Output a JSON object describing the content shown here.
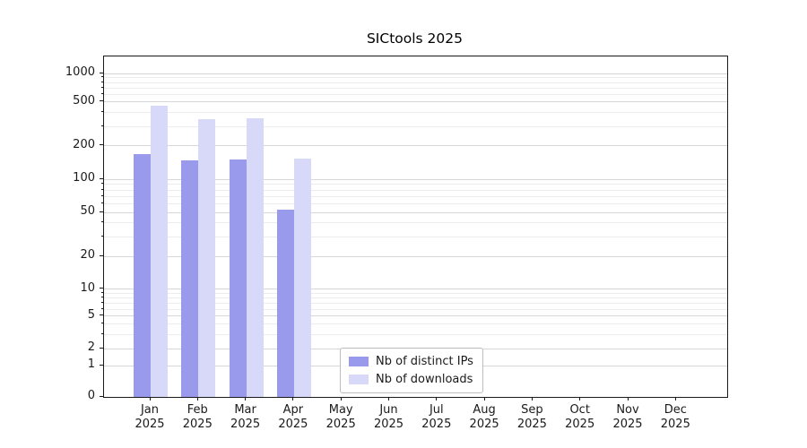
{
  "figure": {
    "background": "#ffffff"
  },
  "colors": {
    "grid_major": "#d7d7d7",
    "grid_minor": "#ececec",
    "spine": "#1a1a1a",
    "text": "#1a1a1a"
  },
  "chart_data": {
    "type": "bar",
    "title": "SICtools 2025",
    "scale": "symlog",
    "grid": "y",
    "legend_position": "inside-bottom-center",
    "ylim": [
      0,
      1300
    ],
    "categories": [
      {
        "month": "Jan",
        "year": "2025"
      },
      {
        "month": "Feb",
        "year": "2025"
      },
      {
        "month": "Mar",
        "year": "2025"
      },
      {
        "month": "Apr",
        "year": "2025"
      },
      {
        "month": "May",
        "year": "2025"
      },
      {
        "month": "Jun",
        "year": "2025"
      },
      {
        "month": "Jul",
        "year": "2025"
      },
      {
        "month": "Aug",
        "year": "2025"
      },
      {
        "month": "Sep",
        "year": "2025"
      },
      {
        "month": "Oct",
        "year": "2025"
      },
      {
        "month": "Nov",
        "year": "2025"
      },
      {
        "month": "Dec",
        "year": "2025"
      }
    ],
    "series": [
      {
        "name": "Nb of distinct IPs",
        "slug": "distinct-ips",
        "color": "#9a9aed",
        "values": [
          168,
          147,
          150,
          53,
          0,
          0,
          0,
          0,
          0,
          0,
          0,
          0
        ]
      },
      {
        "name": "Nb of downloads",
        "slug": "downloads",
        "color": "#d8d8f8",
        "values": [
          460,
          350,
          360,
          155,
          0,
          0,
          0,
          0,
          0,
          0,
          0,
          0
        ]
      }
    ],
    "y_ticks": [
      {
        "v": 0,
        "label": "0",
        "f": 0.0
      },
      {
        "v": 1,
        "label": "1",
        "f": 0.092
      },
      {
        "v": 2,
        "label": "2",
        "f": 0.142
      },
      {
        "v": 5,
        "label": "5",
        "f": 0.237
      },
      {
        "v": 10,
        "label": "10",
        "f": 0.316
      },
      {
        "v": 20,
        "label": "20",
        "f": 0.413
      },
      {
        "v": 50,
        "label": "50",
        "f": 0.542
      },
      {
        "v": 100,
        "label": "100",
        "f": 0.639
      },
      {
        "v": 200,
        "label": "200",
        "f": 0.737
      },
      {
        "v": 500,
        "label": "500",
        "f": 0.866
      },
      {
        "v": 1000,
        "label": "1000",
        "f": 0.95
      }
    ],
    "minor_gridline_values": [
      3,
      4,
      6,
      7,
      8,
      9,
      30,
      40,
      60,
      70,
      80,
      90,
      300,
      400,
      600,
      700,
      800,
      900
    ]
  }
}
